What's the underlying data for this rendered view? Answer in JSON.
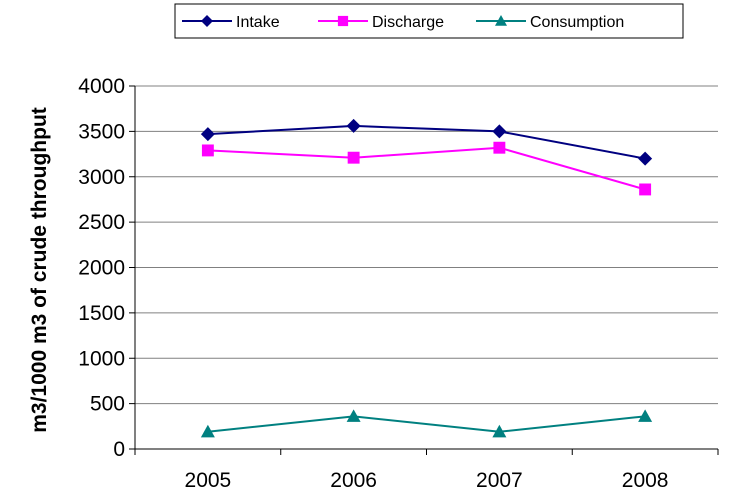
{
  "chart_data": {
    "type": "line",
    "categories": [
      "2005",
      "2006",
      "2007",
      "2008"
    ],
    "series": [
      {
        "name": "Intake",
        "values": [
          3470,
          3560,
          3500,
          3200
        ],
        "color": "#000080",
        "marker": "diamond"
      },
      {
        "name": "Discharge",
        "values": [
          3290,
          3210,
          3320,
          2860
        ],
        "color": "#FF00FF",
        "marker": "square"
      },
      {
        "name": "Consumption",
        "values": [
          190,
          360,
          190,
          360
        ],
        "color": "#008080",
        "marker": "triangle"
      }
    ],
    "ylabel": "m3/1000 m3 of crude throughput",
    "xlabel": "",
    "ylim": [
      0,
      4000
    ],
    "yticks": [
      0,
      500,
      1000,
      1500,
      2000,
      2500,
      3000,
      3500,
      4000
    ],
    "grid": true,
    "legend": "top"
  }
}
